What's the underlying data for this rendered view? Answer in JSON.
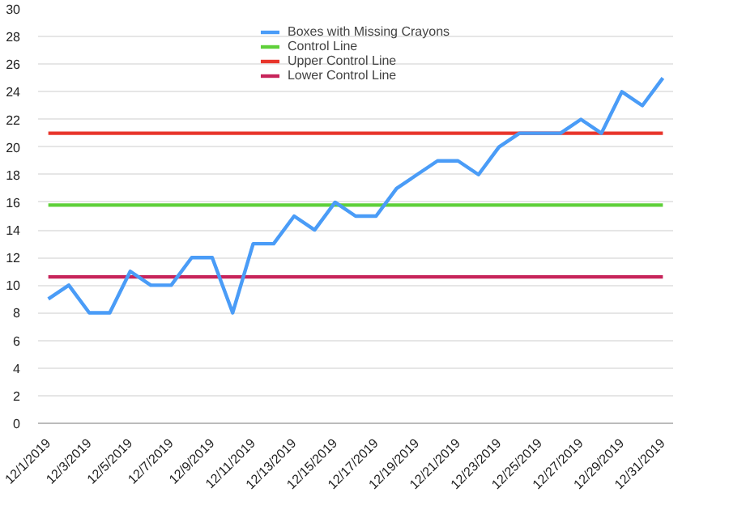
{
  "chart_data": {
    "type": "line",
    "categories": [
      "12/1/2019",
      null,
      "12/3/2019",
      null,
      "12/5/2019",
      null,
      "12/7/2019",
      null,
      "12/9/2019",
      null,
      "12/11/2019",
      null,
      "12/13/2019",
      null,
      "12/15/2019",
      null,
      "12/17/2019",
      null,
      "12/19/2019",
      null,
      "12/21/2019",
      null,
      "12/23/2019",
      null,
      "12/25/2019",
      null,
      "12/27/2019",
      null,
      "12/29/2019",
      null,
      "12/31/2019"
    ],
    "series": [
      {
        "name": "Boxes with Missing Crayons",
        "color": "#4a9cf7",
        "values": [
          9,
          10,
          8,
          8,
          11,
          10,
          10,
          12,
          12,
          8,
          13,
          13,
          15,
          14,
          16,
          15,
          15,
          17,
          18,
          19,
          19,
          18,
          20,
          21,
          21,
          21,
          22,
          21,
          24,
          23,
          25
        ]
      },
      {
        "name": "Control Line",
        "color": "#5fd03a",
        "values": [
          15.8,
          15.8,
          15.8,
          15.8,
          15.8,
          15.8,
          15.8,
          15.8,
          15.8,
          15.8,
          15.8,
          15.8,
          15.8,
          15.8,
          15.8,
          15.8,
          15.8,
          15.8,
          15.8,
          15.8,
          15.8,
          15.8,
          15.8,
          15.8,
          15.8,
          15.8,
          15.8,
          15.8,
          15.8,
          15.8,
          15.8
        ]
      },
      {
        "name": "Upper Control Line",
        "color": "#e8352b",
        "values": [
          21,
          21,
          21,
          21,
          21,
          21,
          21,
          21,
          21,
          21,
          21,
          21,
          21,
          21,
          21,
          21,
          21,
          21,
          21,
          21,
          21,
          21,
          21,
          21,
          21,
          21,
          21,
          21,
          21,
          21,
          21
        ]
      },
      {
        "name": "Lower Control Line",
        "color": "#c7245a",
        "values": [
          10.6,
          10.6,
          10.6,
          10.6,
          10.6,
          10.6,
          10.6,
          10.6,
          10.6,
          10.6,
          10.6,
          10.6,
          10.6,
          10.6,
          10.6,
          10.6,
          10.6,
          10.6,
          10.6,
          10.6,
          10.6,
          10.6,
          10.6,
          10.6,
          10.6,
          10.6,
          10.6,
          10.6,
          10.6,
          10.6,
          10.6
        ]
      }
    ],
    "ylim": [
      0,
      30
    ],
    "yticks": [
      0,
      2,
      4,
      6,
      8,
      10,
      12,
      14,
      16,
      18,
      20,
      22,
      24,
      26,
      28,
      30
    ],
    "grid": "y",
    "legend": "top",
    "marker": "none",
    "line_style": "solid"
  }
}
